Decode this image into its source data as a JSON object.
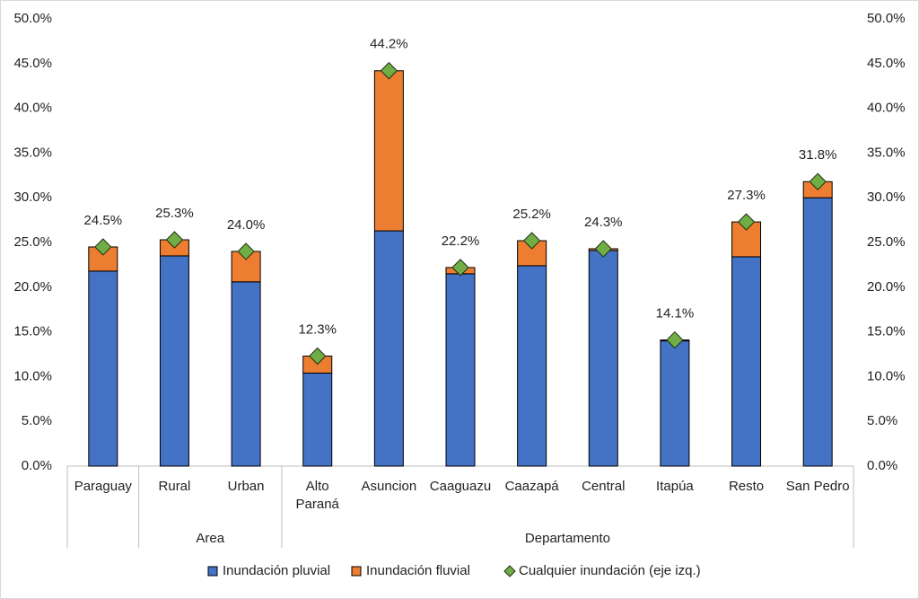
{
  "chart_data": {
    "type": "bar",
    "stacked": true,
    "grid": false,
    "categories": [
      "Paraguay",
      "Rural",
      "Urban",
      "Alto\nParaná",
      "Asuncion",
      "Caaguazu",
      "Caazapá",
      "Central",
      "Itapúa",
      "Resto",
      "San Pedro"
    ],
    "category_groups": [
      null,
      "Area",
      "Area",
      "Departamento",
      "Departamento",
      "Departamento",
      "Departamento",
      "Departamento",
      "Departamento",
      "Departamento",
      "Departamento"
    ],
    "series": [
      {
        "name": "Inundación pluvial",
        "color": "#4472c4",
        "values": [
          21.8,
          23.5,
          20.6,
          10.4,
          26.3,
          21.5,
          22.4,
          24.1,
          14.0,
          23.4,
          30.0
        ]
      },
      {
        "name": "Inundación fluvial",
        "color": "#ed7d31",
        "values": [
          2.7,
          1.8,
          3.4,
          1.9,
          17.9,
          0.7,
          2.8,
          0.2,
          0.1,
          3.9,
          1.8
        ]
      },
      {
        "name": "Cualquier inundación (eje izq.)",
        "type": "scatter",
        "marker": "diamond",
        "color": "#70ad47",
        "values": [
          24.5,
          25.3,
          24.0,
          12.3,
          44.2,
          22.2,
          25.2,
          24.3,
          14.1,
          27.3,
          31.8
        ],
        "value_labels": [
          "24.5%",
          "25.3%",
          "24.0%",
          "12.3%",
          "44.2%",
          "22.2%",
          "25.2%",
          "24.3%",
          "14.1%",
          "27.3%",
          "31.8%"
        ]
      }
    ],
    "ylim": [
      0,
      50
    ],
    "yticks": [
      {
        "value": 0,
        "label": "0.0%"
      },
      {
        "value": 5,
        "label": "5.0%"
      },
      {
        "value": 10,
        "label": "10.0%"
      },
      {
        "value": 15,
        "label": "15.0%"
      },
      {
        "value": 20,
        "label": "20.0%"
      },
      {
        "value": 25,
        "label": "25.0%"
      },
      {
        "value": 30,
        "label": "30.0%"
      },
      {
        "value": 35,
        "label": "35.0%"
      },
      {
        "value": 40,
        "label": "40.0%"
      },
      {
        "value": 45,
        "label": "45.0%"
      },
      {
        "value": 50,
        "label": "50.0%"
      }
    ],
    "y2lim": [
      0,
      50
    ],
    "y2ticks": [
      {
        "value": 0,
        "label": "0.0%"
      },
      {
        "value": 5,
        "label": "5.0%"
      },
      {
        "value": 10,
        "label": "10.0%"
      },
      {
        "value": 15,
        "label": "15.0%"
      },
      {
        "value": 20,
        "label": "20.0%"
      },
      {
        "value": 25,
        "label": "25.0%"
      },
      {
        "value": 30,
        "label": "30.0%"
      },
      {
        "value": 35,
        "label": "35.0%"
      },
      {
        "value": 40,
        "label": "40.0%"
      },
      {
        "value": 45,
        "label": "45.0%"
      },
      {
        "value": 50,
        "label": "50.0%"
      }
    ],
    "legend": "bottom"
  }
}
